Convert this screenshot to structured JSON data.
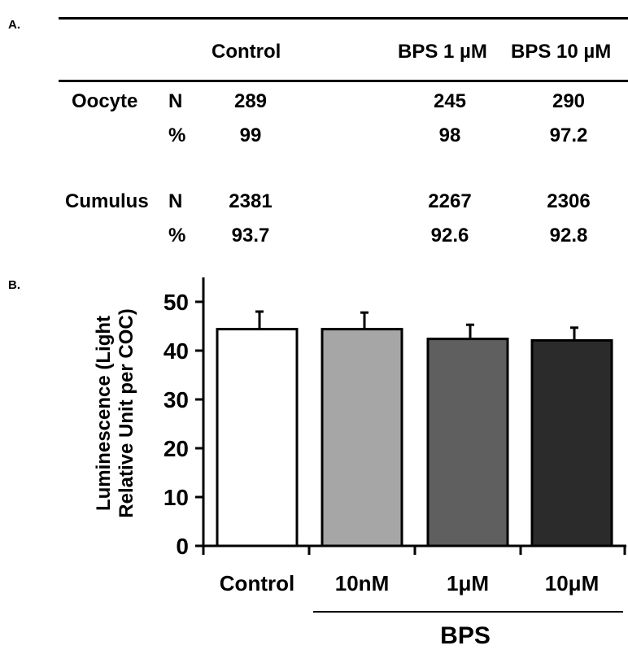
{
  "panel_a": {
    "label": "A.",
    "columns": [
      "Control",
      "BPS 1 µM",
      "BPS 10 µM"
    ],
    "rows": [
      {
        "group": "Oocyte",
        "stat": "N",
        "values": [
          "289",
          "245",
          "290"
        ]
      },
      {
        "group": "",
        "stat": "%",
        "values": [
          "99",
          "98",
          "97.2"
        ]
      },
      {
        "group": "Cumulus",
        "stat": "N",
        "values": [
          "2381",
          "2267",
          "2306"
        ]
      },
      {
        "group": "",
        "stat": "%",
        "values": [
          "93.7",
          "92.6",
          "92.8"
        ]
      }
    ]
  },
  "panel_b": {
    "label": "B.",
    "group_label": "BPS"
  },
  "chart_data": {
    "type": "bar",
    "title": "",
    "xlabel": "",
    "ylabel": "Luminescence (Light Relative Unit per COC)",
    "ylabel_lines": [
      "Luminescence (Light",
      "Relative Unit per COC)"
    ],
    "categories": [
      "Control",
      "10nM",
      "1μM",
      "10μM"
    ],
    "values": [
      44.4,
      44.4,
      42.4,
      42.1
    ],
    "errors": [
      3.6,
      3.4,
      2.9,
      2.6
    ],
    "bar_colors": [
      "#ffffff",
      "#a6a6a6",
      "#5f5f5f",
      "#2b2b2b"
    ],
    "ylim": [
      0,
      55
    ],
    "yticks": [
      0,
      10,
      20,
      30,
      40,
      50
    ],
    "grid": false
  }
}
